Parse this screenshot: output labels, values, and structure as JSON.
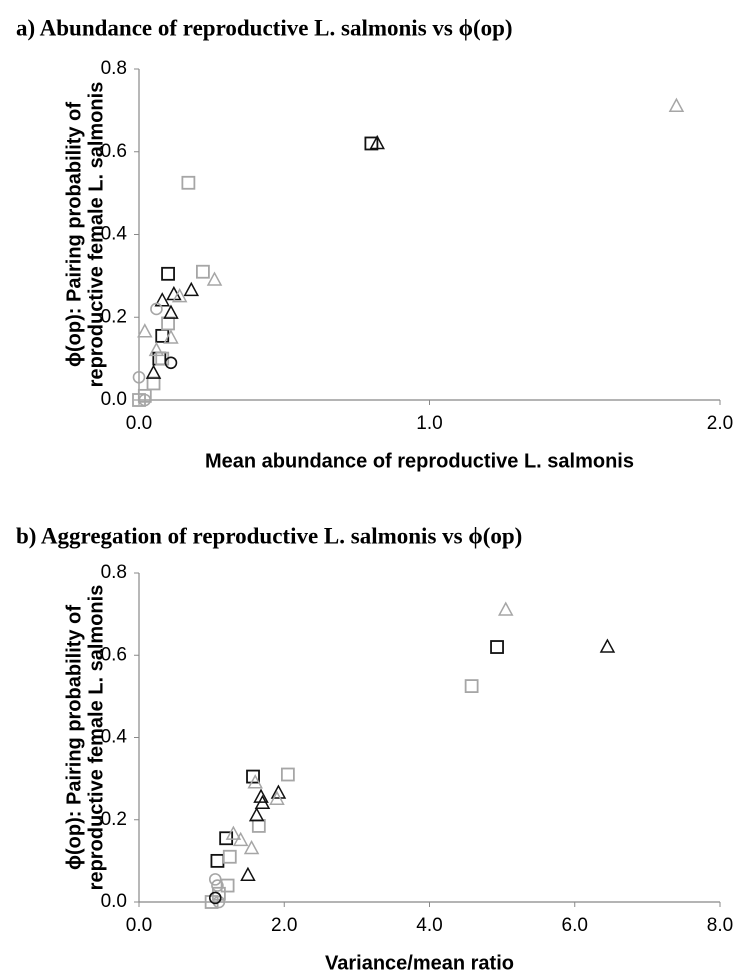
{
  "chart_data": [
    {
      "type": "scatter",
      "title": "a) Abundance of reproductive L. salmonis vs ϕ(op)",
      "xlabel": "Mean abundance of reproductive L. salmonis",
      "ylabel": [
        "ϕ(op): Pairing probability of",
        "reproductive female L. salmonis"
      ],
      "xlim": [
        0,
        2
      ],
      "ylim": [
        0,
        0.8
      ],
      "xticks": [
        {
          "value": 0,
          "label": "0.0"
        },
        {
          "value": 1,
          "label": "1.0"
        },
        {
          "value": 2,
          "label": "2.0"
        }
      ],
      "yticks": [
        {
          "value": 0,
          "label": "0.0"
        },
        {
          "value": 0.2,
          "label": "0.2"
        },
        {
          "value": 0.4,
          "label": "0.4"
        },
        {
          "value": 0.6,
          "label": "0.6"
        },
        {
          "value": 0.8,
          "label": "0.8"
        }
      ],
      "series": [
        {
          "marker": "square",
          "color": "#111111",
          "x": [
            0.8,
            0.1,
            0.08,
            0.07
          ],
          "values": [
            0.62,
            0.305,
            0.155,
            0.1
          ]
        },
        {
          "marker": "square",
          "color": "#a6a6a6",
          "x": [
            0.17,
            0.22,
            0.1,
            0.05,
            0.02,
            0.0,
            0.08
          ],
          "values": [
            0.525,
            0.31,
            0.185,
            0.04,
            0.01,
            0.0,
            0.1
          ]
        },
        {
          "marker": "triangle",
          "color": "#111111",
          "x": [
            0.82,
            0.18,
            0.12,
            0.08,
            0.11,
            0.05
          ],
          "values": [
            0.62,
            0.265,
            0.255,
            0.24,
            0.21,
            0.065
          ]
        },
        {
          "marker": "triangle",
          "color": "#a6a6a6",
          "x": [
            1.85,
            0.26,
            0.14,
            0.02,
            0.11,
            0.06
          ],
          "values": [
            0.71,
            0.29,
            0.25,
            0.165,
            0.15,
            0.12
          ]
        },
        {
          "marker": "circle",
          "color": "#a6a6a6",
          "x": [
            0.06,
            0.0,
            0.02
          ],
          "values": [
            0.22,
            0.055,
            0.0
          ]
        },
        {
          "marker": "circle",
          "color": "#111111",
          "x": [
            0.11
          ],
          "values": [
            0.09
          ]
        }
      ]
    },
    {
      "type": "scatter",
      "title": "b) Aggregation of reproductive L. salmonis vs ϕ(op)",
      "xlabel": "Variance/mean ratio",
      "ylabel": [
        "ϕ(op): Pairing probability of",
        "reproductive female L. salmonis"
      ],
      "xlim": [
        0,
        8
      ],
      "ylim": [
        0,
        0.8
      ],
      "xticks": [
        {
          "value": 0,
          "label": "0.0"
        },
        {
          "value": 2,
          "label": "2.0"
        },
        {
          "value": 4,
          "label": "4.0"
        },
        {
          "value": 6,
          "label": "6.0"
        },
        {
          "value": 8,
          "label": "8.0"
        }
      ],
      "yticks": [
        {
          "value": 0,
          "label": "0.0"
        },
        {
          "value": 0.2,
          "label": "0.2"
        },
        {
          "value": 0.4,
          "label": "0.4"
        },
        {
          "value": 0.6,
          "label": "0.6"
        },
        {
          "value": 0.8,
          "label": "0.8"
        }
      ],
      "series": [
        {
          "marker": "square",
          "color": "#111111",
          "x": [
            4.93,
            1.57,
            1.2,
            1.08
          ],
          "values": [
            0.62,
            0.305,
            0.155,
            0.1
          ]
        },
        {
          "marker": "square",
          "color": "#a6a6a6",
          "x": [
            4.58,
            2.05,
            1.65,
            1.25,
            1.22,
            1.1,
            1.0
          ],
          "values": [
            0.525,
            0.31,
            0.185,
            0.11,
            0.04,
            0.02,
            0.0
          ]
        },
        {
          "marker": "triangle",
          "color": "#111111",
          "x": [
            6.45,
            1.92,
            1.68,
            1.62,
            1.7,
            1.5
          ],
          "values": [
            0.62,
            0.265,
            0.255,
            0.21,
            0.24,
            0.065
          ]
        },
        {
          "marker": "triangle",
          "color": "#a6a6a6",
          "x": [
            5.05,
            1.6,
            1.3,
            1.4,
            1.55,
            1.9
          ],
          "values": [
            0.71,
            0.29,
            0.165,
            0.15,
            0.13,
            0.25
          ]
        },
        {
          "marker": "circle",
          "color": "#a6a6a6",
          "x": [
            1.05,
            1.1,
            1.08
          ],
          "values": [
            0.055,
            0.0,
            0.04
          ]
        },
        {
          "marker": "circle",
          "color": "#111111",
          "x": [
            1.05
          ],
          "values": [
            0.01
          ]
        }
      ]
    }
  ]
}
